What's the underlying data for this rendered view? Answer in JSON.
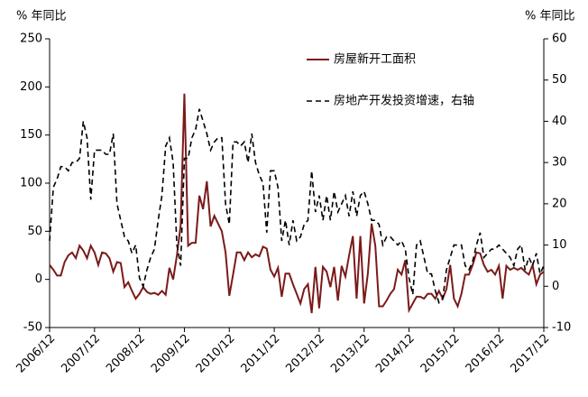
{
  "chart_data": {
    "type": "line",
    "y_label": "% 年同比",
    "y2_label": "% 年同比",
    "categories": [
      "2006/12",
      null,
      null,
      null,
      null,
      null,
      null,
      null,
      null,
      null,
      null,
      null,
      "2007/12",
      null,
      null,
      null,
      null,
      null,
      null,
      null,
      null,
      null,
      null,
      null,
      "2008/12",
      null,
      null,
      null,
      null,
      null,
      null,
      null,
      null,
      null,
      null,
      null,
      "2009/12",
      null,
      null,
      null,
      null,
      null,
      null,
      null,
      null,
      null,
      null,
      null,
      "2010/12",
      null,
      null,
      null,
      null,
      null,
      null,
      null,
      null,
      null,
      null,
      null,
      "2011/12",
      null,
      null,
      null,
      null,
      null,
      null,
      null,
      null,
      null,
      null,
      null,
      "2012/12",
      null,
      null,
      null,
      null,
      null,
      null,
      null,
      null,
      null,
      null,
      null,
      "2013/12",
      null,
      null,
      null,
      null,
      null,
      null,
      null,
      null,
      null,
      null,
      null,
      "2014/12",
      null,
      null,
      null,
      null,
      null,
      null,
      null,
      null,
      null,
      null,
      null,
      "2015/12",
      null,
      null,
      null,
      null,
      null,
      null,
      null,
      null,
      null,
      null,
      null,
      "2016/12",
      null,
      null,
      null,
      null,
      null,
      null,
      null,
      null,
      null,
      null,
      null,
      "2017/12"
    ],
    "series": [
      {
        "name": "房屋新开工面积",
        "color": "#7b1a1a",
        "dash": false,
        "axis": "y",
        "values": [
          15,
          10,
          4,
          4,
          18,
          25,
          28,
          22,
          35,
          30,
          22,
          35,
          28,
          15,
          28,
          27,
          22,
          8,
          18,
          17,
          -8,
          -3,
          -12,
          -20,
          -15,
          -8,
          -13,
          -15,
          -14,
          -16,
          -12,
          -16,
          12,
          0,
          25,
          56,
          193,
          35,
          38,
          38,
          87,
          73,
          102,
          55,
          66,
          58,
          50,
          28,
          -17,
          5,
          28,
          28,
          20,
          28,
          23,
          26,
          24,
          34,
          32,
          10,
          3,
          12,
          -18,
          6,
          6,
          -5,
          -15,
          -25,
          -10,
          -5,
          -35,
          13,
          -30,
          13,
          8,
          -8,
          13,
          -22,
          14,
          3,
          25,
          45,
          -20,
          45,
          -25,
          6,
          58,
          35,
          -28,
          -28,
          -22,
          -15,
          -10,
          10,
          5,
          20,
          -32,
          -25,
          -18,
          -18,
          -20,
          -15,
          -15,
          -20,
          -12,
          -20,
          -10,
          15,
          -20,
          -28,
          -15,
          5,
          5,
          15,
          28,
          27,
          15,
          8,
          10,
          5,
          14,
          -20,
          14,
          10,
          12,
          10,
          12,
          8,
          5,
          15,
          -5,
          5,
          8
        ]
      },
      {
        "name": "房地产开发投资增速，右轴",
        "color": "#000000",
        "dash": true,
        "axis": "y2",
        "values": [
          11,
          24,
          26,
          29,
          29,
          28,
          30,
          30,
          31,
          40,
          36,
          21,
          33,
          33,
          33,
          32,
          32,
          37,
          20,
          16,
          12,
          11,
          8,
          10,
          2,
          0,
          4,
          7,
          9,
          16,
          22,
          34,
          36,
          30,
          10,
          5,
          31,
          31,
          36,
          38,
          43,
          40,
          37,
          33,
          35,
          36,
          36,
          20,
          15,
          35,
          35,
          34,
          35,
          30,
          37,
          30,
          27,
          25,
          13,
          28,
          28,
          24,
          11,
          16,
          10,
          16,
          11,
          12,
          15,
          16,
          28,
          18,
          22,
          16,
          22,
          16,
          23,
          18,
          20,
          22,
          17,
          23,
          17,
          22,
          23,
          20,
          16,
          16,
          15,
          10,
          12,
          12,
          11,
          10,
          11,
          9,
          2,
          -2,
          10,
          11,
          7,
          3,
          3,
          -1,
          -4,
          -3,
          4,
          7,
          10,
          10,
          10,
          5,
          4,
          6,
          10,
          13,
          7,
          8,
          9,
          9,
          10,
          9,
          8,
          7,
          5,
          9,
          10,
          4,
          7,
          5,
          8,
          3,
          5
        ]
      }
    ],
    "ylim": [
      -50,
      250
    ],
    "yticks": [
      -50,
      0,
      50,
      100,
      150,
      200,
      250
    ],
    "y2lim": [
      -10,
      60
    ],
    "y2ticks": [
      -10,
      0,
      10,
      20,
      30,
      40,
      50,
      60
    ],
    "legend": "top-center"
  }
}
